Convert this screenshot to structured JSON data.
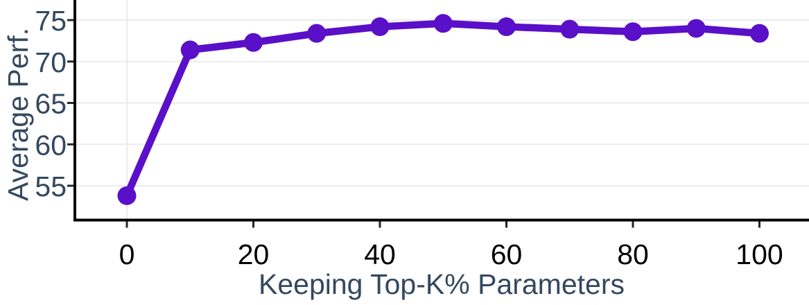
{
  "chart_data": {
    "type": "line",
    "title": "",
    "xlabel": "Keeping Top-K% Parameters",
    "ylabel": "Average Perf.",
    "x": [
      0,
      10,
      20,
      30,
      40,
      50,
      60,
      70,
      80,
      90,
      100
    ],
    "values": [
      53.8,
      71.4,
      72.3,
      73.4,
      74.2,
      74.6,
      74.2,
      73.9,
      73.6,
      74.0,
      73.4
    ],
    "x_tick_labels": [
      "0",
      "20",
      "40",
      "60",
      "80",
      "100"
    ],
    "x_tick_values": [
      0,
      20,
      40,
      60,
      80,
      100
    ],
    "y_tick_labels": [
      "55",
      "60",
      "65",
      "70",
      "75"
    ],
    "y_tick_values": [
      55,
      60,
      65,
      70,
      75
    ],
    "xlim": [
      -8,
      108
    ],
    "ylim": [
      51,
      77.4
    ],
    "legend": "none",
    "grid": {
      "horizontal": true,
      "vertical_at_x0_only": true
    },
    "colors": {
      "line": "#5a0fc8",
      "marker": "#5a0fc8",
      "axis_label": "#33485f",
      "y_tick_label": "#33485f",
      "x_tick_label": "#000000",
      "grid": "#ebebeb",
      "spine": "#000000",
      "tick_mark": "#262626",
      "background": "#ffffff"
    }
  }
}
